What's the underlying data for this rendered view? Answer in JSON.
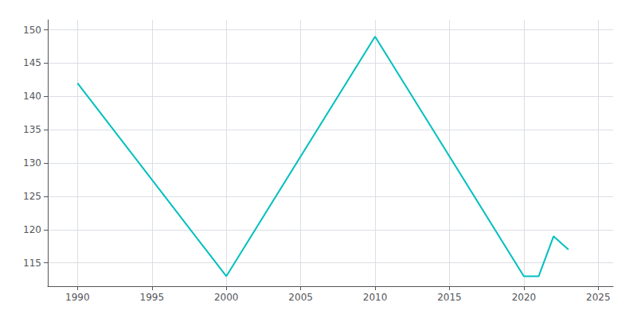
{
  "chart_data": {
    "type": "line",
    "x": [
      1990,
      2000,
      2010,
      2020,
      2021,
      2022,
      2023
    ],
    "values": [
      142,
      113,
      149,
      113,
      113,
      119,
      117
    ],
    "color": "#00BFBF",
    "xlim": [
      1988,
      2026
    ],
    "xticks": [
      1990,
      1995,
      2000,
      2005,
      2010,
      2015,
      2020,
      2025
    ],
    "ylim": [
      111.5,
      151.5
    ],
    "yticks": [
      115,
      120,
      125,
      130,
      135,
      140,
      145,
      150
    ],
    "grid": true
  }
}
